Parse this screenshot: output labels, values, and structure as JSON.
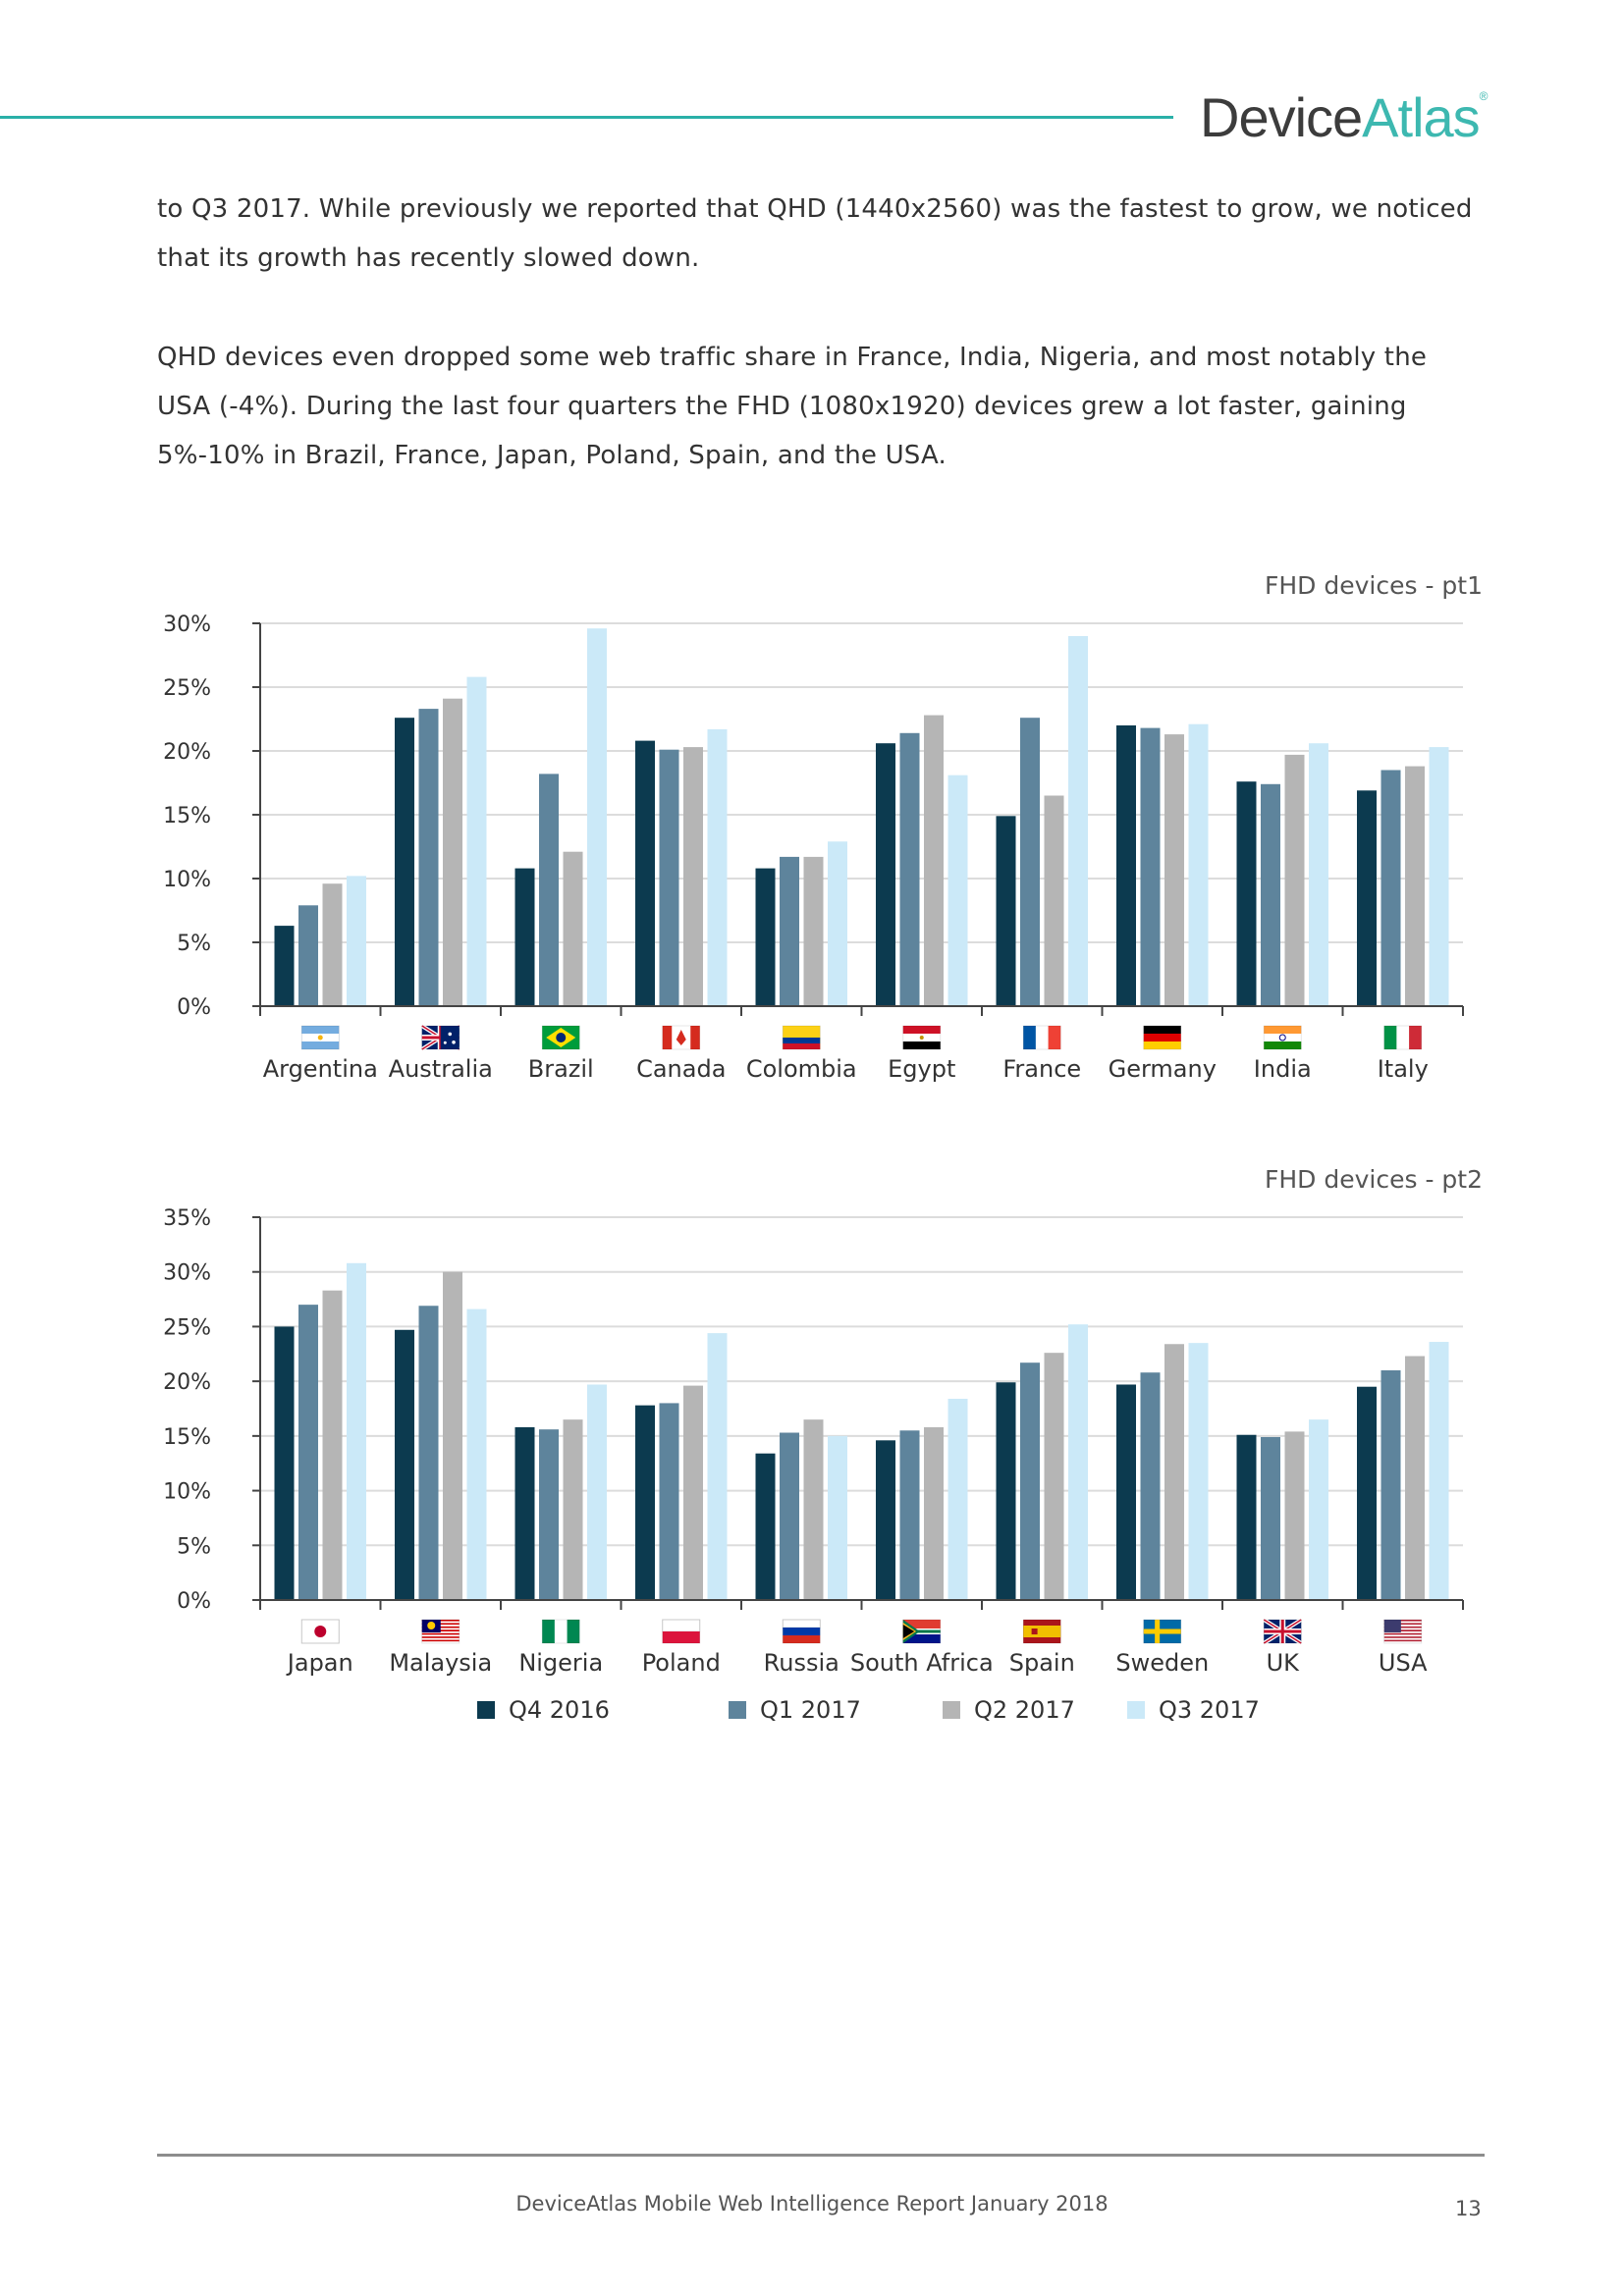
{
  "header": {
    "logo_device": "Device",
    "logo_atlas": "Atlas",
    "logo_reg": "®"
  },
  "body": {
    "para1": "to Q3 2017. While previously we reported that QHD (1440x2560) was the fastest to grow, we noticed that its growth has recently slowed down.",
    "para2": "QHD devices even dropped some web traffic share in France, India, Nigeria, and most notably the USA (-4%). During the last four quarters the FHD (1080x1920) devices grew a lot faster, gaining 5%-10% in Brazil, France, Japan, Poland, Spain, and the USA."
  },
  "colors": {
    "q4_2016": "#0c3a4f",
    "q1_2017": "#5e849c",
    "q2_2017": "#b5b5b5",
    "q3_2017": "#cbe9f8"
  },
  "legend": [
    {
      "label": "Q4 2016",
      "color": "#0c3a4f"
    },
    {
      "label": "Q1 2017",
      "color": "#5e849c"
    },
    {
      "label": "Q2 2017",
      "color": "#b5b5b5"
    },
    {
      "label": "Q3 2017",
      "color": "#cbe9f8"
    }
  ],
  "chart_data": [
    {
      "type": "bar",
      "title": "FHD devices - pt1",
      "categories": [
        "Argentina",
        "Australia",
        "Brazil",
        "Canada",
        "Colombia",
        "Egypt",
        "France",
        "Germany",
        "India",
        "Italy"
      ],
      "flags": [
        "AR",
        "AU",
        "BR",
        "CA",
        "CO",
        "EG",
        "FR",
        "DE",
        "IN",
        "IT"
      ],
      "ylim": [
        0,
        30
      ],
      "yticks": [
        0,
        5,
        10,
        15,
        20,
        25,
        30
      ],
      "ytick_labels": [
        "0%",
        "5%",
        "10%",
        "15%",
        "20%",
        "25%",
        "30%"
      ],
      "series": [
        {
          "name": "Q4 2016",
          "values": [
            6.3,
            22.6,
            10.8,
            20.8,
            10.8,
            20.6,
            14.9,
            22.0,
            17.6,
            16.9
          ]
        },
        {
          "name": "Q1 2017",
          "values": [
            7.9,
            23.3,
            18.2,
            20.1,
            11.7,
            21.4,
            22.6,
            21.8,
            17.4,
            18.5
          ]
        },
        {
          "name": "Q2 2017",
          "values": [
            9.6,
            24.1,
            12.1,
            20.3,
            11.7,
            22.8,
            16.5,
            21.3,
            19.7,
            18.8
          ]
        },
        {
          "name": "Q3 2017",
          "values": [
            10.2,
            25.8,
            29.6,
            21.7,
            12.9,
            18.1,
            29.0,
            22.1,
            20.6,
            20.3
          ]
        }
      ]
    },
    {
      "type": "bar",
      "title": "FHD devices - pt2",
      "categories": [
        "Japan",
        "Malaysia",
        "Nigeria",
        "Poland",
        "Russia",
        "South Africa",
        "Spain",
        "Sweden",
        "UK",
        "USA"
      ],
      "flags": [
        "JP",
        "MY",
        "NG",
        "PL",
        "RU",
        "ZA",
        "ES",
        "SE",
        "GB",
        "US"
      ],
      "ylim": [
        0,
        35
      ],
      "yticks": [
        0,
        5,
        10,
        15,
        20,
        25,
        30,
        35
      ],
      "ytick_labels": [
        "0%",
        "5%",
        "10%",
        "15%",
        "20%",
        "25%",
        "30%",
        "35%"
      ],
      "series": [
        {
          "name": "Q4 2016",
          "values": [
            25.0,
            24.7,
            15.8,
            17.8,
            13.4,
            14.6,
            19.9,
            19.7,
            15.1,
            19.5
          ]
        },
        {
          "name": "Q1 2017",
          "values": [
            27.0,
            26.9,
            15.6,
            18.0,
            15.3,
            15.5,
            21.7,
            20.8,
            14.9,
            21.0
          ]
        },
        {
          "name": "Q2 2017",
          "values": [
            28.3,
            30.0,
            16.5,
            19.6,
            16.5,
            15.8,
            22.6,
            23.4,
            15.4,
            22.3
          ]
        },
        {
          "name": "Q3 2017",
          "values": [
            30.8,
            26.6,
            19.7,
            24.4,
            15.0,
            18.4,
            25.2,
            23.5,
            16.5,
            23.6
          ]
        }
      ]
    }
  ],
  "footer": {
    "text": "DeviceAtlas Mobile Web Intelligence Report January 2018",
    "page": "13"
  }
}
